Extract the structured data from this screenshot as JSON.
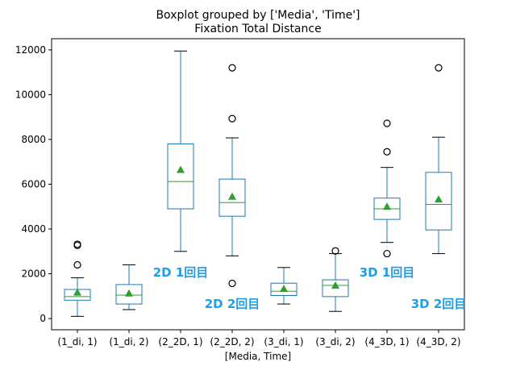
{
  "chart_data": {
    "type": "box",
    "title": "Boxplot grouped by ['Media', 'Time']",
    "subtitle": "Fixation Total Distance",
    "xlabel": "[Media, Time]",
    "ylabel": "",
    "ylim": [
      -500,
      12500
    ],
    "yticks": [
      0,
      2000,
      4000,
      6000,
      8000,
      10000,
      12000
    ],
    "grid": false,
    "categories": [
      "(1_di, 1)",
      "(1_di, 2)",
      "(2_2D, 1)",
      "(2_2D, 2)",
      "(3_di, 1)",
      "(3_di, 2)",
      "(4_3D, 1)",
      "(4_3D, 2)"
    ],
    "boxes": [
      {
        "whislo": 100,
        "q1": 820,
        "med": 980,
        "q3": 1300,
        "whishi": 1820,
        "mean": 1170,
        "fliers": [
          2400,
          3270,
          3320
        ]
      },
      {
        "whislo": 400,
        "q1": 650,
        "med": 1050,
        "q3": 1520,
        "whishi": 2400,
        "mean": 1130,
        "fliers": []
      },
      {
        "whislo": 3000,
        "q1": 4900,
        "med": 6120,
        "q3": 7800,
        "whishi": 11950,
        "mean": 6650,
        "fliers": []
      },
      {
        "whislo": 2800,
        "q1": 4570,
        "med": 5180,
        "q3": 6230,
        "whishi": 8070,
        "mean": 5450,
        "fliers": [
          1570,
          8930,
          11200
        ]
      },
      {
        "whislo": 650,
        "q1": 1030,
        "med": 1220,
        "q3": 1580,
        "whishi": 2280,
        "mean": 1330,
        "fliers": []
      },
      {
        "whislo": 320,
        "q1": 980,
        "med": 1480,
        "q3": 1730,
        "whishi": 2900,
        "mean": 1480,
        "fliers": [
          3020
        ]
      },
      {
        "whislo": 3400,
        "q1": 4430,
        "med": 4900,
        "q3": 5380,
        "whishi": 6750,
        "mean": 5000,
        "fliers": [
          2900,
          7450,
          8720
        ]
      },
      {
        "whislo": 2900,
        "q1": 3960,
        "med": 5100,
        "q3": 6530,
        "whishi": 8100,
        "mean": 5330,
        "fliers": [
          11200
        ]
      }
    ],
    "annotations": [
      {
        "text": "2D 1回目",
        "x": 3,
        "y": 2050
      },
      {
        "text": "2D 2回目",
        "x": 4,
        "y": 650
      },
      {
        "text": "3D 1回目",
        "x": 7,
        "y": 2050
      },
      {
        "text": "3D 2回目",
        "x": 8,
        "y": 650
      }
    ],
    "colors": {
      "box": "#1f77b4",
      "median": "#2ca02c",
      "mean": "#2ca02c",
      "flier": "#000000",
      "annotation": "#1f9ee8"
    }
  }
}
